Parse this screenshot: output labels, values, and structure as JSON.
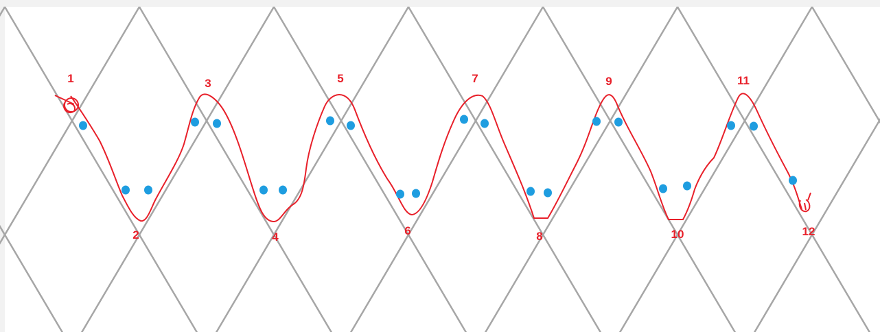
{
  "colors": {
    "background": "#f2f2f2",
    "panel": "#ffffff",
    "grid_line": "#a6a6a6",
    "path_line": "#e8202a",
    "dot": "#1e9de0",
    "label": "#e8202a"
  },
  "diagram": {
    "labels": [
      "1",
      "2",
      "3",
      "4",
      "5",
      "6",
      "7",
      "8",
      "9",
      "10",
      "11",
      "12"
    ]
  }
}
